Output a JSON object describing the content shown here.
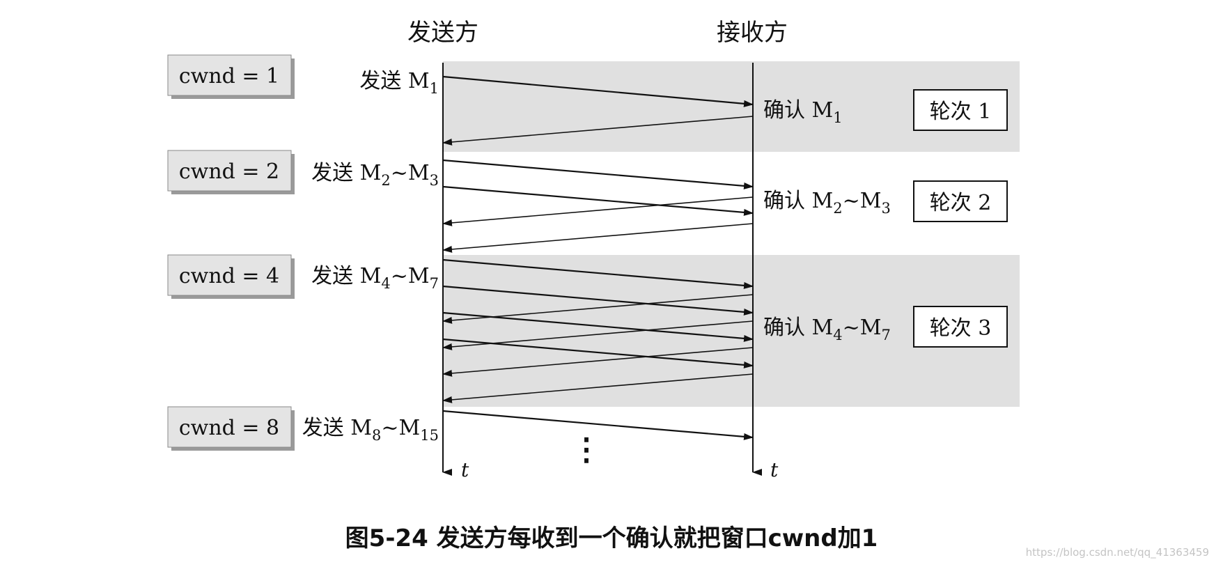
{
  "header": {
    "sender": "发送方",
    "receiver": "接收方"
  },
  "cwnd_labels": [
    "cwnd = 1",
    "cwnd = 2",
    "cwnd = 4",
    "cwnd = 8"
  ],
  "send_labels": [
    {
      "prefix": "发送 M",
      "a": "1",
      "tilde": "",
      "b": ""
    },
    {
      "prefix": "发送 M",
      "a": "2",
      "tilde": "~M",
      "b": "3"
    },
    {
      "prefix": "发送 M",
      "a": "4",
      "tilde": "~M",
      "b": "7"
    },
    {
      "prefix": "发送 M",
      "a": "8",
      "tilde": "~M",
      "b": "15"
    }
  ],
  "ack_labels": [
    {
      "prefix": "确认 M",
      "a": "1",
      "tilde": "",
      "b": ""
    },
    {
      "prefix": "确认 M",
      "a": "2",
      "tilde": "~M",
      "b": "3"
    },
    {
      "prefix": "确认 M",
      "a": "4",
      "tilde": "~M",
      "b": "7"
    }
  ],
  "round_labels": [
    "轮次 1",
    "轮次 2",
    "轮次 3"
  ],
  "axis": {
    "time_sender": "t",
    "time_receiver": "t"
  },
  "continuation": "⋮",
  "caption": "图5-24 发送方每收到一个确认就把窗口cwnd加1",
  "watermark": "https://blog.csdn.net/qq_41363459",
  "colors": {
    "shade": "#e0e0e0",
    "line": "#111111",
    "box_fill": "#e4e4e4"
  }
}
